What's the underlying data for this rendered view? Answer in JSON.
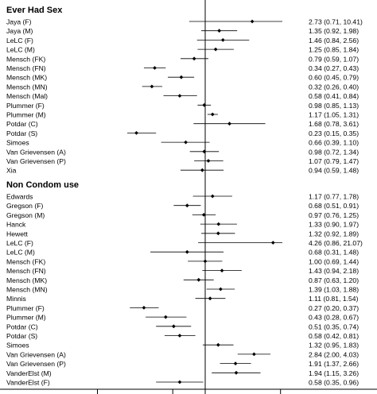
{
  "chart_data": {
    "type": "forest",
    "log_scale": true,
    "reference_line": 1,
    "xlim": [
      0.1,
      12
    ],
    "axis_ticks": [
      0.1,
      0.5,
      1,
      5
    ],
    "tick_labels_visible": false,
    "groups": [
      {
        "title": "Ever Had Sex",
        "rows": [
          {
            "label": "Jaya (F)",
            "est": 2.73,
            "lo": 0.71,
            "hi": 10.41,
            "text": "2.73 (0.71, 10.41)"
          },
          {
            "label": "Jaya (M)",
            "est": 1.35,
            "lo": 0.92,
            "hi": 1.98,
            "text": "1.35 (0.92, 1.98)"
          },
          {
            "label": "LeLC (F)",
            "est": 1.46,
            "lo": 0.84,
            "hi": 2.56,
            "text": "1.46 (0.84, 2.56)"
          },
          {
            "label": "LeLC (M)",
            "est": 1.25,
            "lo": 0.85,
            "hi": 1.84,
            "text": "1.25 (0.85, 1.84)"
          },
          {
            "label": "Mensch (FK)",
            "est": 0.79,
            "lo": 0.59,
            "hi": 1.07,
            "text": "0.79 (0.59, 1.07)"
          },
          {
            "label": "Mensch (FN)",
            "est": 0.34,
            "lo": 0.27,
            "hi": 0.43,
            "text": "0.34 (0.27, 0.43)"
          },
          {
            "label": "Mensch (MK)",
            "est": 0.6,
            "lo": 0.45,
            "hi": 0.79,
            "text": "0.60 (0.45, 0.79)"
          },
          {
            "label": "Mensch (MN)",
            "est": 0.32,
            "lo": 0.26,
            "hi": 0.4,
            "text": "0.32 (0.26, 0.40)"
          },
          {
            "label": "Mensch (Mal)",
            "est": 0.58,
            "lo": 0.41,
            "hi": 0.84,
            "text": "0.58 (0.41, 0.84)"
          },
          {
            "label": "Plummer (F)",
            "est": 0.98,
            "lo": 0.85,
            "hi": 1.13,
            "text": "0.98 (0.85, 1.13)"
          },
          {
            "label": "Plummer (M)",
            "est": 1.17,
            "lo": 1.05,
            "hi": 1.31,
            "text": "1.17 (1.05, 1.31)"
          },
          {
            "label": "Potdar (C)",
            "est": 1.68,
            "lo": 0.78,
            "hi": 3.61,
            "text": "1.68 (0.78, 3.61)"
          },
          {
            "label": "Potdar (S)",
            "est": 0.23,
            "lo": 0.15,
            "hi": 0.35,
            "text": "0.23 (0.15, 0.35)"
          },
          {
            "label": "Simoes",
            "est": 0.66,
            "lo": 0.39,
            "hi": 1.1,
            "text": "0.66 (0.39, 1.10)"
          },
          {
            "label": "Van Grievensen (A)",
            "est": 0.98,
            "lo": 0.72,
            "hi": 1.34,
            "text": "0.98 (0.72, 1.34)"
          },
          {
            "label": "Van Grievensen (P)",
            "est": 1.07,
            "lo": 0.79,
            "hi": 1.47,
            "text": "1.07 (0.79, 1.47)"
          },
          {
            "label": "Xia",
            "est": 0.94,
            "lo": 0.59,
            "hi": 1.48,
            "text": "0.94 (0.59, 1.48)"
          }
        ]
      },
      {
        "title": "Non Condom use",
        "rows": [
          {
            "label": "Edwards",
            "est": 1.17,
            "lo": 0.77,
            "hi": 1.78,
            "text": "1.17 (0.77, 1.78)"
          },
          {
            "label": "Gregson (F)",
            "est": 0.68,
            "lo": 0.51,
            "hi": 0.91,
            "text": "0.68 (0.51, 0.91)"
          },
          {
            "label": "Gregson (M)",
            "est": 0.97,
            "lo": 0.76,
            "hi": 1.25,
            "text": "0.97 (0.76, 1.25)"
          },
          {
            "label": "Hanck",
            "est": 1.33,
            "lo": 0.9,
            "hi": 1.97,
            "text": "1.33 (0.90, 1.97)"
          },
          {
            "label": "Hewett",
            "est": 1.32,
            "lo": 0.92,
            "hi": 1.89,
            "text": "1.32 (0.92, 1.89)"
          },
          {
            "label": "LeLC (F)",
            "est": 4.26,
            "lo": 0.86,
            "hi": 21.07,
            "text": "4.26 (0.86, 21.07)"
          },
          {
            "label": "LeLC (M)",
            "est": 0.68,
            "lo": 0.31,
            "hi": 1.48,
            "text": "0.68 (0.31, 1.48)"
          },
          {
            "label": "Mensch (FK)",
            "est": 1.0,
            "lo": 0.69,
            "hi": 1.44,
            "text": "1.00 (0.69, 1.44)"
          },
          {
            "label": "Mensch (FN)",
            "est": 1.43,
            "lo": 0.94,
            "hi": 2.18,
            "text": "1.43 (0.94, 2.18)"
          },
          {
            "label": "Mensch (MK)",
            "est": 0.87,
            "lo": 0.63,
            "hi": 1.2,
            "text": "0.87 (0.63, 1.20)"
          },
          {
            "label": "Mensch (MN)",
            "est": 1.39,
            "lo": 1.03,
            "hi": 1.88,
            "text": "1.39 (1.03, 1.88)"
          },
          {
            "label": "Minnis",
            "est": 1.11,
            "lo": 0.81,
            "hi": 1.54,
            "text": "1.11 (0.81, 1.54)"
          },
          {
            "label": "Plummer (F)",
            "est": 0.27,
            "lo": 0.2,
            "hi": 0.37,
            "text": "0.27 (0.20, 0.37)"
          },
          {
            "label": "Plummer (M)",
            "est": 0.43,
            "lo": 0.28,
            "hi": 0.67,
            "text": "0.43 (0.28, 0.67)"
          },
          {
            "label": "Potdar (C)",
            "est": 0.51,
            "lo": 0.35,
            "hi": 0.74,
            "text": "0.51 (0.35, 0.74)"
          },
          {
            "label": "Potdar (S)",
            "est": 0.58,
            "lo": 0.42,
            "hi": 0.81,
            "text": "0.58 (0.42, 0.81)"
          },
          {
            "label": "Simoes",
            "est": 1.32,
            "lo": 0.95,
            "hi": 1.83,
            "text": "1.32 (0.95, 1.83)"
          },
          {
            "label": "Van Grievensen (A)",
            "est": 2.84,
            "lo": 2.0,
            "hi": 4.03,
            "text": "2.84 (2.00, 4.03)"
          },
          {
            "label": "Van Grievensen (P)",
            "est": 1.91,
            "lo": 1.37,
            "hi": 2.66,
            "text": "1.91 (1.37, 2.66)"
          },
          {
            "label": "VanderElst (M)",
            "est": 1.94,
            "lo": 1.15,
            "hi": 3.26,
            "text": "1.94 (1.15, 3.26)"
          },
          {
            "label": "VanderElst (F)",
            "est": 0.58,
            "lo": 0.35,
            "hi": 0.96,
            "text": "0.58 (0.35, 0.96)"
          }
        ]
      }
    ]
  }
}
